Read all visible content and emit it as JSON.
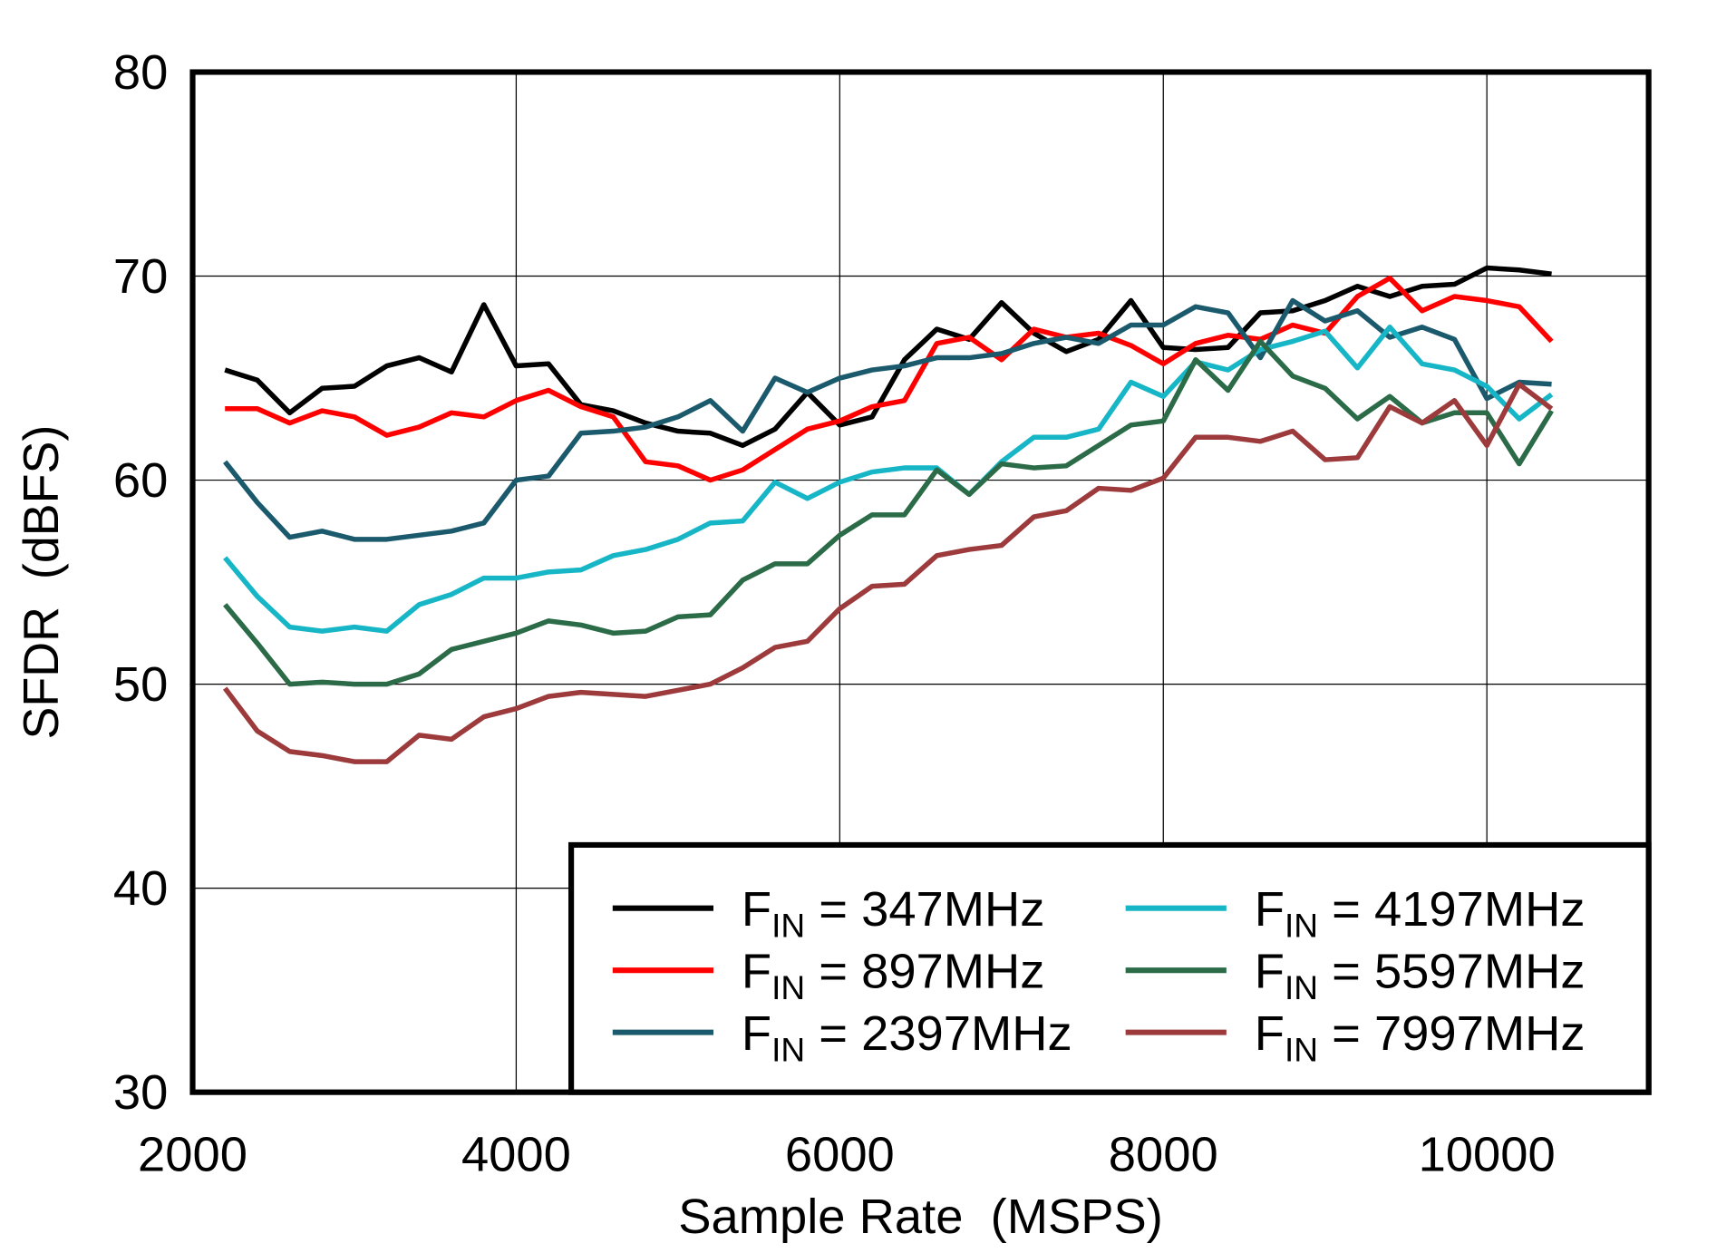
{
  "chart_data": {
    "type": "line",
    "title": "",
    "xlabel": "Sample Rate  (MSPS)",
    "ylabel": "SFDR  (dBFS)",
    "xlim": [
      2000,
      11000
    ],
    "ylim": [
      30,
      80
    ],
    "xticks": [
      2000,
      4000,
      6000,
      8000,
      10000
    ],
    "yticks": [
      30,
      40,
      50,
      60,
      70,
      80
    ],
    "grid": true,
    "legend_placement": "bottom-right",
    "x": [
      2200,
      2400,
      2600,
      2800,
      3000,
      3200,
      3400,
      3600,
      3800,
      4000,
      4200,
      4400,
      4600,
      4800,
      5000,
      5200,
      5400,
      5600,
      5800,
      6000,
      6200,
      6400,
      6600,
      6800,
      7000,
      7200,
      7400,
      7600,
      7800,
      8000,
      8200,
      8400,
      8600,
      8800,
      9000,
      9200,
      9400,
      9600,
      9800,
      10000,
      10200,
      10400
    ],
    "series": [
      {
        "name_prefix": "F",
        "name_sub": "IN",
        "name_suffix": " = 347MHz",
        "color": "#000000",
        "values": [
          65.4,
          64.9,
          63.3,
          64.5,
          64.6,
          65.6,
          66.0,
          65.3,
          68.6,
          65.6,
          65.7,
          63.7,
          63.4,
          62.8,
          62.4,
          62.3,
          61.7,
          62.5,
          64.3,
          62.7,
          63.1,
          65.9,
          67.4,
          66.9,
          68.7,
          67.2,
          66.3,
          66.9,
          68.8,
          66.5,
          66.4,
          66.5,
          68.2,
          68.3,
          68.8,
          69.5,
          69.0,
          69.5,
          69.6,
          70.4,
          70.3,
          70.1
        ]
      },
      {
        "name_prefix": "F",
        "name_sub": "IN",
        "name_suffix": " = 897MHz",
        "color": "#ff0000",
        "values": [
          63.5,
          63.5,
          62.8,
          63.4,
          63.1,
          62.2,
          62.6,
          63.3,
          63.1,
          63.9,
          64.4,
          63.6,
          63.1,
          60.9,
          60.7,
          60.0,
          60.5,
          61.5,
          62.5,
          62.9,
          63.6,
          63.9,
          66.7,
          67.0,
          65.9,
          67.4,
          67.0,
          67.2,
          66.6,
          65.7,
          66.7,
          67.1,
          66.9,
          67.6,
          67.2,
          69.0,
          69.9,
          68.3,
          69.0,
          68.8,
          68.5,
          66.8
        ]
      },
      {
        "name_prefix": "F",
        "name_sub": "IN",
        "name_suffix": " = 2397MHz",
        "color": "#1b5a6c",
        "values": [
          60.9,
          58.9,
          57.2,
          57.5,
          57.1,
          57.1,
          57.3,
          57.5,
          57.9,
          60.0,
          60.2,
          62.3,
          62.4,
          62.6,
          63.1,
          63.9,
          62.4,
          65.0,
          64.3,
          65.0,
          65.4,
          65.6,
          66.0,
          66.0,
          66.2,
          66.7,
          67.0,
          66.7,
          67.6,
          67.6,
          68.5,
          68.2,
          66.0,
          68.8,
          67.8,
          68.3,
          67.0,
          67.5,
          66.9,
          64.0,
          64.8,
          64.7
        ]
      },
      {
        "name_prefix": "F",
        "name_sub": "IN",
        "name_suffix": " = 4197MHz",
        "color": "#17b6c6",
        "values": [
          56.2,
          54.3,
          52.8,
          52.6,
          52.8,
          52.6,
          53.9,
          54.4,
          55.2,
          55.2,
          55.5,
          55.6,
          56.3,
          56.6,
          57.1,
          57.9,
          58.0,
          59.9,
          59.1,
          59.9,
          60.4,
          60.6,
          60.6,
          59.3,
          60.9,
          62.1,
          62.1,
          62.5,
          64.8,
          64.1,
          65.8,
          65.4,
          66.4,
          66.8,
          67.3,
          65.5,
          67.5,
          65.7,
          65.4,
          64.6,
          63.0,
          64.2
        ]
      },
      {
        "name_prefix": "F",
        "name_sub": "IN",
        "name_suffix": " = 5597MHz",
        "color": "#2b6b48",
        "values": [
          53.9,
          52.0,
          50.0,
          50.1,
          50.0,
          50.0,
          50.5,
          51.7,
          52.1,
          52.5,
          53.1,
          52.9,
          52.5,
          52.6,
          53.3,
          53.4,
          55.1,
          55.9,
          55.9,
          57.3,
          58.3,
          58.3,
          60.5,
          59.3,
          60.8,
          60.6,
          60.7,
          61.7,
          62.7,
          62.9,
          65.9,
          64.4,
          66.8,
          65.1,
          64.5,
          63.0,
          64.1,
          62.8,
          63.3,
          63.3,
          60.8,
          63.4
        ]
      },
      {
        "name_prefix": "F",
        "name_sub": "IN",
        "name_suffix": " = 7997MHz",
        "color": "#9c3a3c",
        "values": [
          49.8,
          47.7,
          46.7,
          46.5,
          46.2,
          46.2,
          47.5,
          47.3,
          48.4,
          48.8,
          49.4,
          49.6,
          49.5,
          49.4,
          49.7,
          50.0,
          50.8,
          51.8,
          52.1,
          53.7,
          54.8,
          54.9,
          56.3,
          56.6,
          56.8,
          58.2,
          58.5,
          59.6,
          59.5,
          60.1,
          62.1,
          62.1,
          61.9,
          62.4,
          61.0,
          61.1,
          63.6,
          62.8,
          63.9,
          61.7,
          64.7,
          63.5
        ]
      }
    ]
  }
}
